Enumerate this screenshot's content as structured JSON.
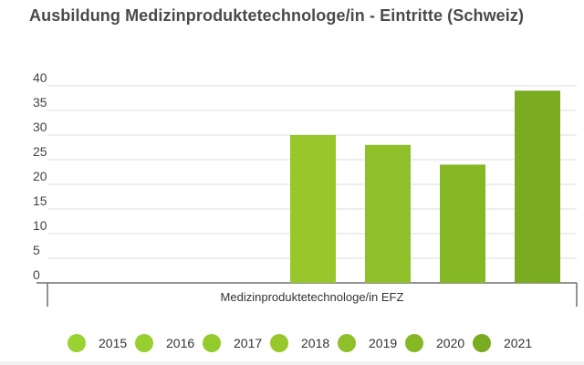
{
  "chart_data": {
    "type": "bar",
    "title": "Ausbildung Medizinproduktetechnologe/in - Eintritte (Schweiz)",
    "categories": [
      "Medizinproduktetechnologe/in EFZ"
    ],
    "xlabel": "",
    "ylabel": "",
    "ylim": [
      0,
      40
    ],
    "yticks": [
      0,
      5,
      10,
      15,
      20,
      25,
      30,
      35,
      40
    ],
    "grid": true,
    "legend_position": "bottom",
    "series": [
      {
        "name": "2015",
        "color": "#9ad232",
        "values": [
          0
        ]
      },
      {
        "name": "2016",
        "color": "#97cf2f",
        "values": [
          0
        ]
      },
      {
        "name": "2017",
        "color": "#93cb2c",
        "values": [
          0
        ]
      },
      {
        "name": "2018",
        "color": "#98c72b",
        "values": [
          30
        ]
      },
      {
        "name": "2019",
        "color": "#8fc029",
        "values": [
          28
        ]
      },
      {
        "name": "2020",
        "color": "#86b825",
        "values": [
          24
        ]
      },
      {
        "name": "2021",
        "color": "#7aab20",
        "values": [
          39
        ]
      }
    ]
  }
}
